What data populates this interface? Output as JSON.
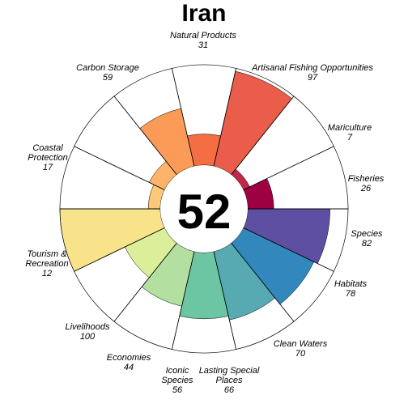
{
  "chart_data": {
    "type": "flower",
    "title": "Iran",
    "center_score": "52",
    "max_value": 100,
    "petals": [
      {
        "name": "Natural Products",
        "value": 31,
        "color": "#f46d43"
      },
      {
        "name": "Artisanal Fishing Opportunities",
        "value": 97,
        "color": "#e95d4a"
      },
      {
        "name": "Mariculture",
        "value": 7,
        "color": "#c0284a"
      },
      {
        "name": "Fisheries",
        "value": 26,
        "color": "#9e0142"
      },
      {
        "name": "Species",
        "value": 82,
        "color": "#5e4fa2"
      },
      {
        "name": "Habitats",
        "value": 78,
        "color": "#3288bd"
      },
      {
        "name": "Clean Waters",
        "value": 70,
        "color": "#58aab2"
      },
      {
        "name": "Lasting Special Places",
        "value": 66,
        "color": "#6cc6a4"
      },
      {
        "name": "Iconic Species",
        "value": 56,
        "color": "#b3e0a0"
      },
      {
        "name": "Economies",
        "value": 44,
        "color": "#dbef9b"
      },
      {
        "name": "Livelihoods",
        "value": 100,
        "color": "#f8e38b"
      },
      {
        "name": "Tourism & Recreation",
        "value": 12,
        "color": "#fdc878"
      },
      {
        "name": "Coastal Protection",
        "value": 17,
        "color": "#fdb46a"
      },
      {
        "name": "Carbon Storage",
        "value": 59,
        "color": "#fc9a58"
      }
    ]
  }
}
